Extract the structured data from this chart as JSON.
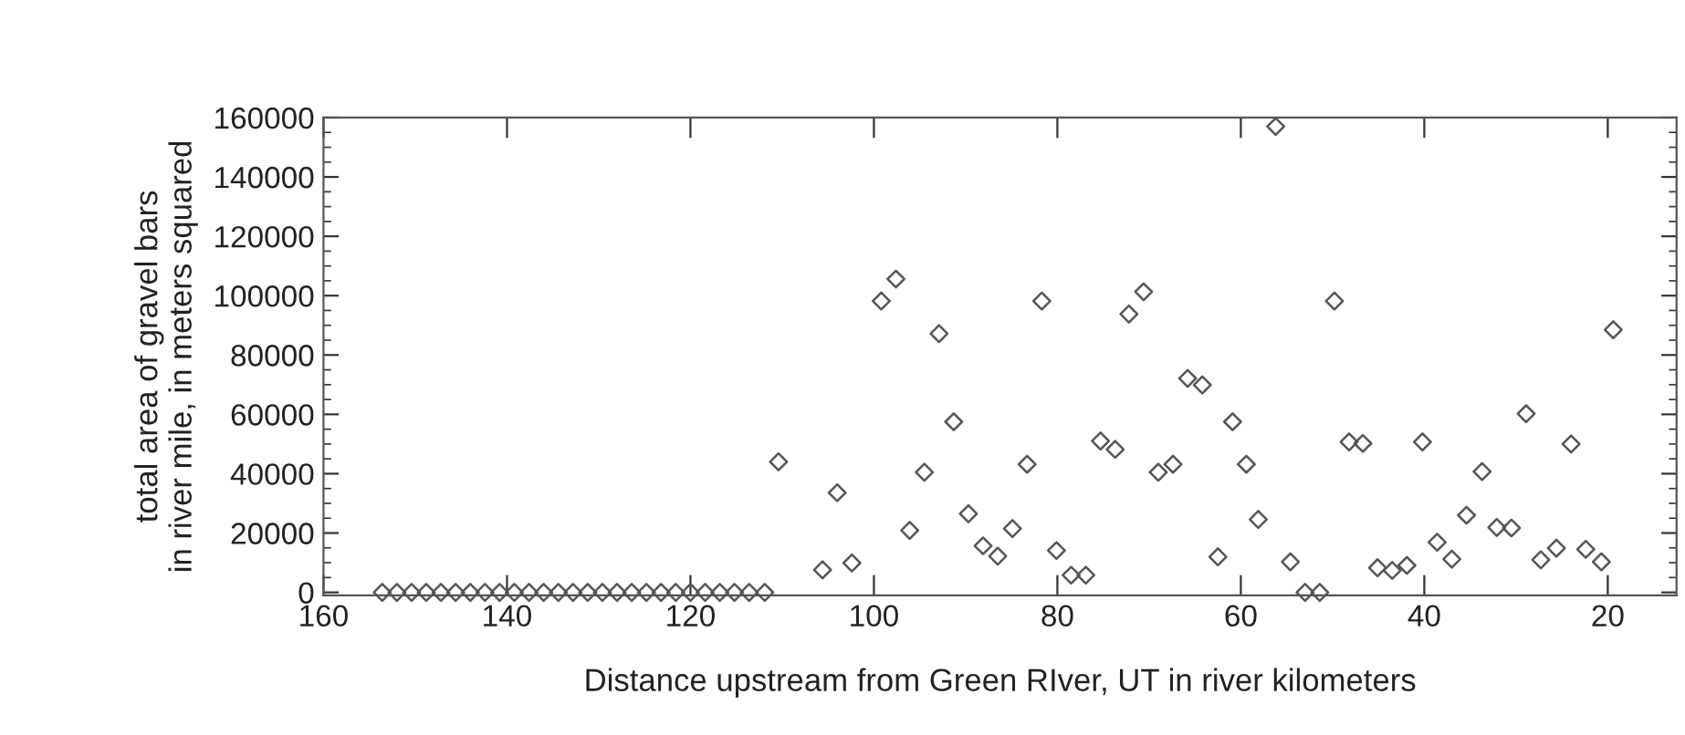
{
  "chart_data": {
    "type": "scatter",
    "xlabel": "Distance upstream from Green RIver, UT in river kilometers",
    "ylabel": "total area of gravel bars\nin river mile, in meters squared",
    "x": [
      153.6,
      152.0,
      150.4,
      148.8,
      147.2,
      145.6,
      144.0,
      142.4,
      140.8,
      139.2,
      137.6,
      136.0,
      134.4,
      132.8,
      131.2,
      129.6,
      128.0,
      126.4,
      124.8,
      123.2,
      121.6,
      120.0,
      118.4,
      116.8,
      115.2,
      113.6,
      111.9,
      110.4,
      105.6,
      104.0,
      102.4,
      99.2,
      97.6,
      96.1,
      94.5,
      92.9,
      91.3,
      89.7,
      88.1,
      86.5,
      84.9,
      83.3,
      81.7,
      80.1,
      78.5,
      76.9,
      75.3,
      73.7,
      72.2,
      70.6,
      69.0,
      67.4,
      65.8,
      64.2,
      62.5,
      60.9,
      59.4,
      58.1,
      56.2,
      54.6,
      53.0,
      51.4,
      49.8,
      48.2,
      46.7,
      45.1,
      43.5,
      41.9,
      40.2,
      38.6,
      37.0,
      35.4,
      33.7,
      32.1,
      30.5,
      28.9,
      27.3,
      25.6,
      24.0,
      22.4,
      20.7,
      19.4
    ],
    "series": [
      {
        "color": "#555555",
        "marker": "diamond",
        "values": [
          0,
          0,
          0,
          0,
          0,
          0,
          0,
          0,
          0,
          0,
          0,
          0,
          0,
          0,
          0,
          0,
          0,
          0,
          0,
          0,
          0,
          0,
          0,
          0,
          0,
          0,
          0,
          44000,
          7600,
          33600,
          9900,
          98200,
          105600,
          20900,
          40500,
          87200,
          57500,
          26500,
          15700,
          12200,
          21500,
          43200,
          98200,
          14100,
          5800,
          5800,
          51000,
          48200,
          93800,
          101300,
          40500,
          43200,
          72100,
          69900,
          12000,
          57500,
          43200,
          24600,
          157000,
          10300,
          0,
          0,
          98200,
          50700,
          50200,
          8300,
          7400,
          9100,
          50700,
          16900,
          11200,
          26000,
          40700,
          21900,
          21700,
          60200,
          11000,
          14900,
          50000,
          14500,
          10300,
          88500
        ]
      }
    ],
    "xlim": [
      160,
      12.5
    ],
    "xticks": [
      160,
      140,
      120,
      100,
      80,
      60,
      40,
      20
    ],
    "ylim": [
      -1000,
      160000
    ],
    "yticks": [
      0,
      20000,
      40000,
      60000,
      80000,
      100000,
      120000,
      140000,
      160000
    ],
    "grid": false,
    "legend": false
  }
}
